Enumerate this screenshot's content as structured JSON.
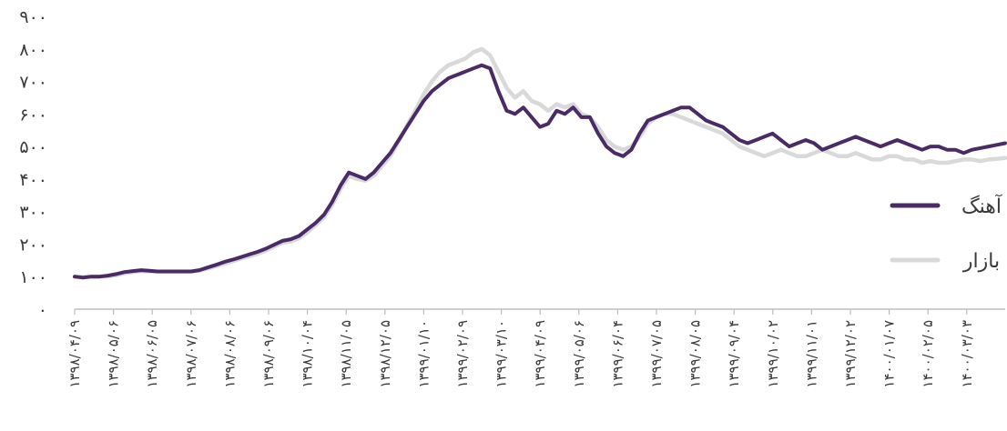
{
  "chart_data": {
    "type": "line",
    "ylim": [
      0,
      900
    ],
    "yticks": [
      "۹۰۰",
      "۸۰۰",
      "۷۰۰",
      "۶۰۰",
      "۵۰۰",
      "۴۰۰",
      "۳۰۰",
      "۲۰۰",
      "۱۰۰",
      "۰"
    ],
    "ytick_values": [
      900,
      800,
      700,
      600,
      500,
      400,
      300,
      200,
      100,
      0
    ],
    "xticks": [
      "۱۳۹۸/۰۴/۰۹",
      "۱۳۹۸/۰۵/۰۶",
      "۱۳۹۸/۰۶/۰۵",
      "۱۳۹۸/۰۷/۰۶",
      "۱۳۹۸/۰۸/۰۶",
      "۱۳۹۸/۰۹/۰۶",
      "۱۳۹۸/۱۰/۰۴",
      "۱۳۹۸/۱۱/۰۵",
      "۱۳۹۸/۱۲/۰۵",
      "۱۳۹۹/۰۱/۱۰",
      "۱۳۹۹/۰۲/۰۹",
      "۱۳۹۹/۰۳/۱۰",
      "۱۳۹۹/۰۴/۰۹",
      "۱۳۹۹/۰۵/۰۶",
      "۱۳۹۹/۰۶/۰۴",
      "۱۳۹۹/۰۷/۰۵",
      "۱۳۹۹/۰۸/۰۵",
      "۱۳۹۹/۰۹/۰۴",
      "۱۳۹۹/۱۰/۰۲",
      "۱۳۹۹/۱۱/۰۱",
      "۱۳۹۹/۱۲/۰۲",
      "۱۴۰۰/۰۱/۰۷",
      "۱۴۰۰/۰۲/۰۵",
      "۱۴۰۰/۰۳/۰۳"
    ],
    "grid": false,
    "legend_position": "right",
    "series": [
      {
        "name": "آهنگ",
        "color": "#4a2b66",
        "values": [
          100,
          97,
          100,
          100,
          103,
          108,
          114,
          117,
          120,
          118,
          116,
          116,
          116,
          116,
          116,
          120,
          128,
          136,
          145,
          152,
          160,
          168,
          176,
          186,
          198,
          210,
          215,
          225,
          245,
          265,
          290,
          330,
          380,
          420,
          410,
          400,
          420,
          450,
          480,
          520,
          560,
          600,
          640,
          670,
          690,
          710,
          720,
          730,
          740,
          750,
          740,
          670,
          610,
          600,
          620,
          590,
          560,
          570,
          610,
          600,
          620,
          590,
          590,
          540,
          500,
          480,
          470,
          490,
          540,
          580,
          590,
          600,
          610,
          620,
          620,
          600,
          580,
          570,
          560,
          540,
          520,
          510,
          520,
          530,
          540,
          520,
          500,
          510,
          520,
          510,
          490,
          500,
          510,
          520,
          530,
          520,
          510,
          500,
          510,
          520,
          510,
          500,
          490,
          500,
          500,
          490,
          490,
          480,
          490,
          495,
          500,
          505,
          510
        ]
      },
      {
        "name": "بازار",
        "color": "#d9d9d9",
        "values": [
          100,
          99,
          100,
          100,
          101,
          104,
          110,
          114,
          117,
          116,
          115,
          115,
          115,
          115,
          115,
          118,
          125,
          132,
          140,
          147,
          155,
          162,
          170,
          180,
          192,
          204,
          208,
          218,
          236,
          258,
          282,
          320,
          370,
          410,
          400,
          395,
          410,
          440,
          470,
          515,
          565,
          610,
          660,
          700,
          730,
          750,
          760,
          770,
          790,
          800,
          780,
          730,
          680,
          650,
          670,
          640,
          630,
          610,
          630,
          620,
          630,
          600,
          590,
          560,
          520,
          500,
          490,
          500,
          530,
          570,
          590,
          600,
          600,
          590,
          580,
          570,
          560,
          550,
          540,
          520,
          500,
          490,
          480,
          470,
          480,
          490,
          480,
          470,
          470,
          480,
          490,
          480,
          470,
          470,
          480,
          470,
          460,
          460,
          470,
          470,
          460,
          460,
          450,
          455,
          450,
          450,
          455,
          460,
          460,
          455,
          460,
          462,
          465
        ]
      }
    ]
  }
}
